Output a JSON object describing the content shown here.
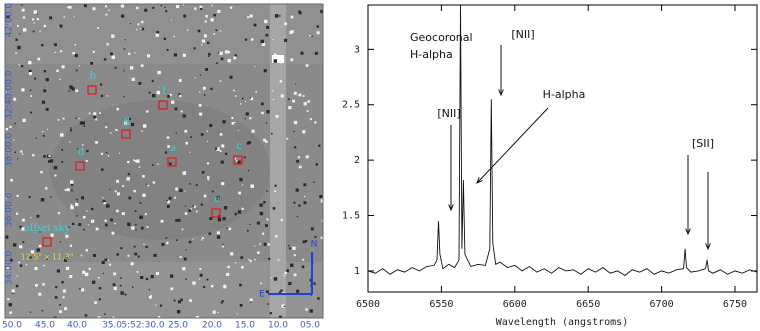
{
  "chart_data": {
    "type": "line",
    "x_label": "Wavelength (angstroms)",
    "x": [
      6500,
      6505,
      6510,
      6515,
      6520,
      6525,
      6530,
      6535,
      6540,
      6545,
      6547,
      6548,
      6549,
      6551,
      6555,
      6559,
      6562,
      6563,
      6564,
      6565,
      6566,
      6570,
      6575,
      6580,
      6583,
      6584,
      6585,
      6587,
      6590,
      6595,
      6600,
      6605,
      6610,
      6615,
      6620,
      6625,
      6630,
      6635,
      6640,
      6645,
      6650,
      6655,
      6660,
      6665,
      6670,
      6675,
      6680,
      6685,
      6690,
      6695,
      6700,
      6705,
      6710,
      6715,
      6716,
      6717,
      6720,
      6725,
      6730,
      6731,
      6732,
      6735,
      6740,
      6745,
      6750,
      6755,
      6760,
      6765
    ],
    "values": [
      1.0,
      0.98,
      1.02,
      0.97,
      1.01,
      0.99,
      1.03,
      1.0,
      1.04,
      1.05,
      1.1,
      1.45,
      1.15,
      1.02,
      1.06,
      1.03,
      1.1,
      3.4,
      1.2,
      1.82,
      1.15,
      1.04,
      1.06,
      1.05,
      1.2,
      2.55,
      1.25,
      1.06,
      1.08,
      1.03,
      1.05,
      1.0,
      1.04,
      0.99,
      1.02,
      0.98,
      1.03,
      1.0,
      1.01,
      0.97,
      1.02,
      0.99,
      1.03,
      0.98,
      1.0,
      0.96,
      1.01,
      0.99,
      1.02,
      0.97,
      1.0,
      0.98,
      1.01,
      1.02,
      1.2,
      1.03,
      0.99,
      1.0,
      1.02,
      1.1,
      1.0,
      0.98,
      1.01,
      0.97,
      1.0,
      0.98,
      1.01,
      0.99
    ],
    "color": "#111111",
    "xlim": [
      6500,
      6765
    ],
    "ylim": [
      0.81,
      3.4
    ],
    "xticks": [
      6500,
      6550,
      6600,
      6650,
      6700,
      6750
    ],
    "yticks": [
      1,
      1.5,
      2,
      2.5,
      3
    ],
    "annotations": [
      "Geocoronal",
      "H-alpha",
      "[NII]",
      "[NII]",
      "H-alpha",
      "[SII]"
    ]
  },
  "image": {
    "dec_labels": [
      "42:00.0",
      "32:40:00.0",
      "38:00.0",
      "36:00.0",
      "34:00.0"
    ],
    "ra_labels": [
      "50.0",
      "45.0",
      "40.0",
      "35.0",
      "5:52:30.0",
      "25.0",
      "20.0",
      "15.0",
      "10.0",
      "05.0"
    ],
    "regions": [
      "b",
      "f",
      "g",
      "d",
      "a",
      "c",
      "e",
      "offset sky"
    ],
    "aperture": "12.5\" x 11.3\"",
    "north": "N",
    "east": "E"
  }
}
